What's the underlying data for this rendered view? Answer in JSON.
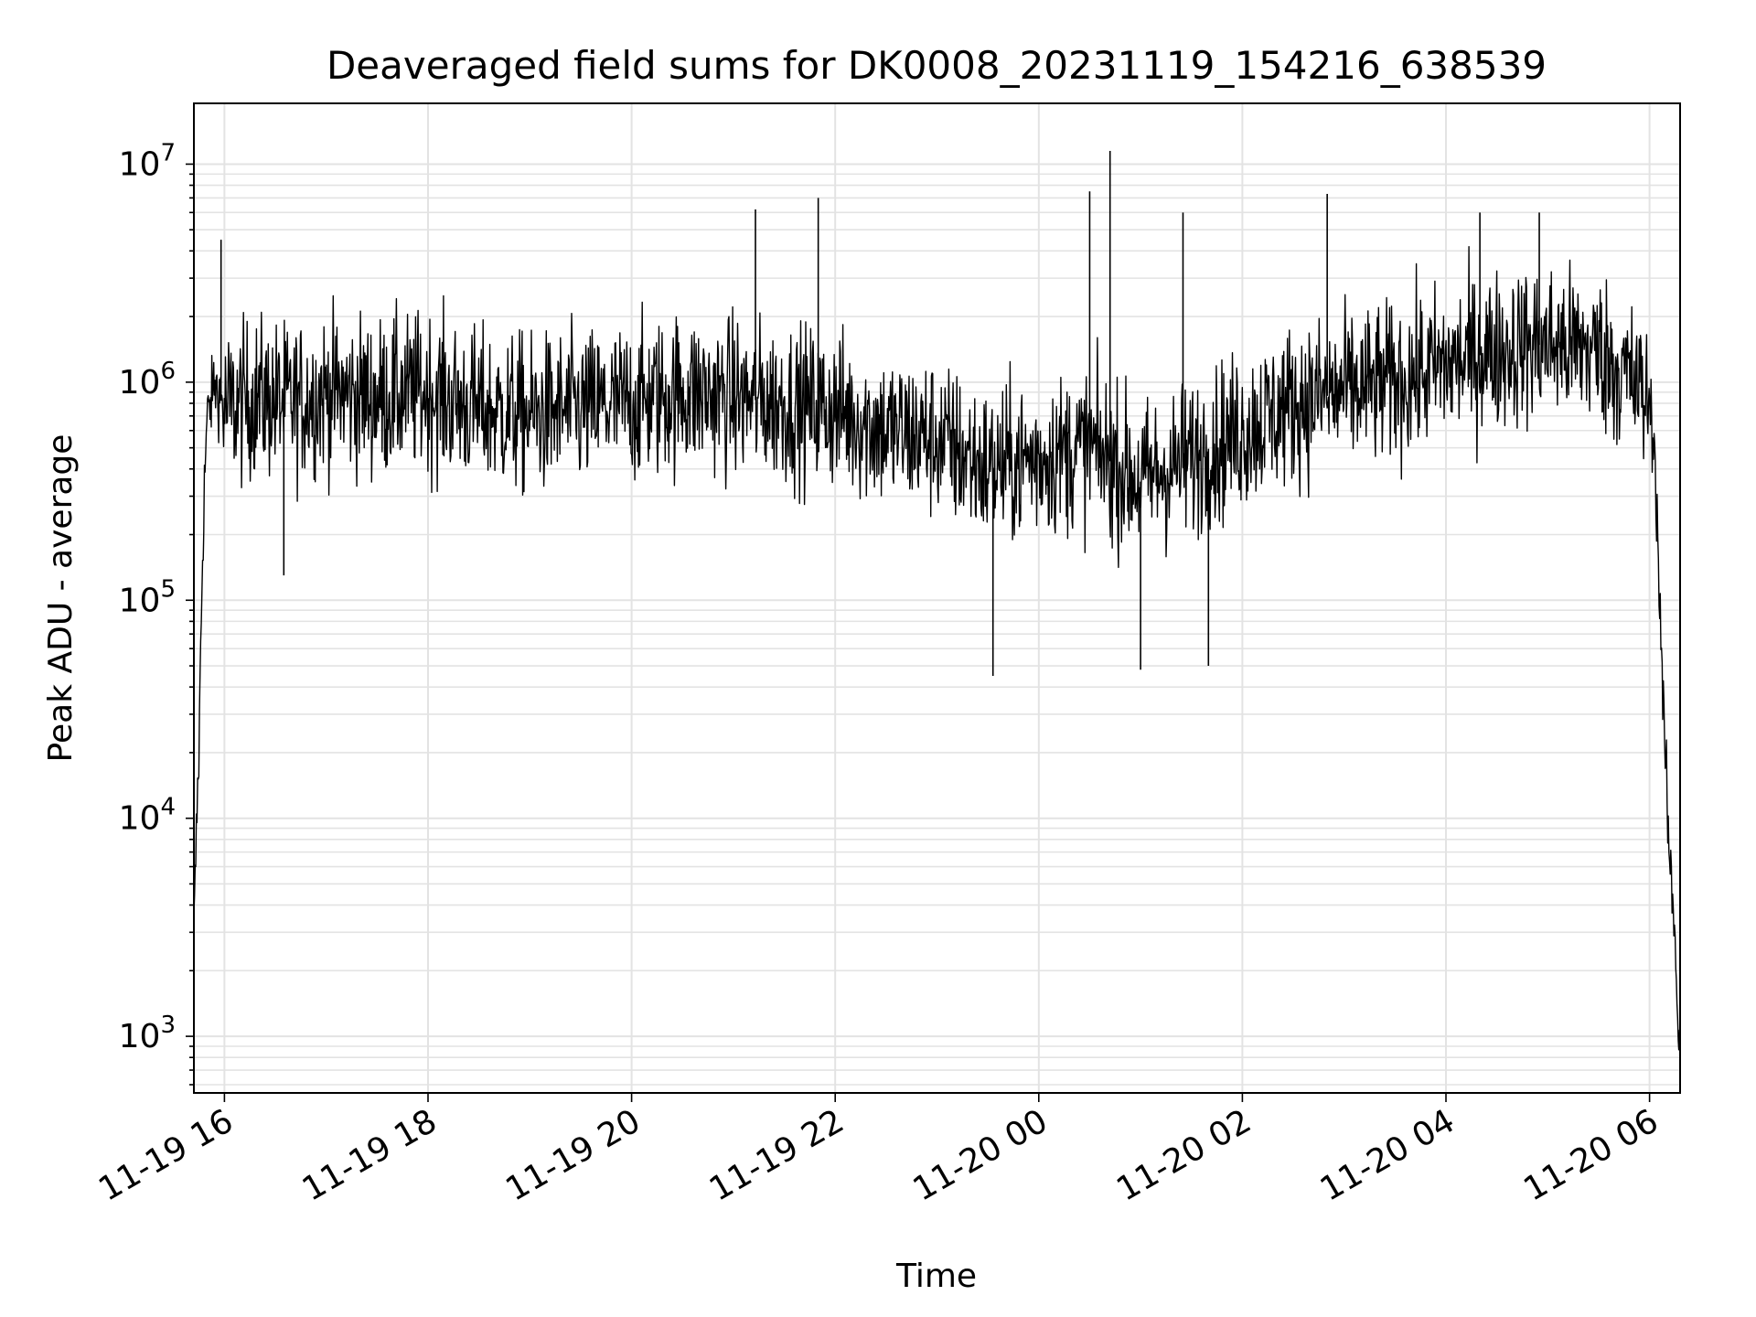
{
  "chart_data": {
    "type": "line",
    "title": "Deaveraged field sums for DK0008_20231119_154216_638539",
    "xlabel": "Time",
    "ylabel": "Peak ADU - average",
    "y_scale": "log",
    "ylim": [
      550,
      19000000
    ],
    "xlim": [
      "2023-11-19 15:42",
      "2023-11-20 06:18"
    ],
    "grid": true,
    "x_ticks": [
      {
        "label": "11-19 16",
        "time": "2023-11-19 16:00"
      },
      {
        "label": "11-19 18",
        "time": "2023-11-19 18:00"
      },
      {
        "label": "11-19 20",
        "time": "2023-11-19 20:00"
      },
      {
        "label": "11-19 22",
        "time": "2023-11-19 22:00"
      },
      {
        "label": "11-20 00",
        "time": "2023-11-20 00:00"
      },
      {
        "label": "11-20 02",
        "time": "2023-11-20 02:00"
      },
      {
        "label": "11-20 04",
        "time": "2023-11-20 04:00"
      },
      {
        "label": "11-20 06",
        "time": "2023-11-20 06:00"
      }
    ],
    "y_ticks": [
      {
        "mantissa": "10",
        "exponent": "3",
        "value": 1000
      },
      {
        "mantissa": "10",
        "exponent": "4",
        "value": 10000
      },
      {
        "mantissa": "10",
        "exponent": "5",
        "value": 100000
      },
      {
        "mantissa": "10",
        "exponent": "6",
        "value": 1000000
      },
      {
        "mantissa": "10",
        "exponent": "7",
        "value": 10000000
      }
    ],
    "series": [
      {
        "color": "#000000",
        "x": [
          "2023-11-19 15:42",
          "2023-11-19 15:43",
          "2023-11-19 15:44",
          "2023-11-19 15:45",
          "2023-11-19 15:46",
          "2023-11-19 15:47",
          "2023-11-19 15:48",
          "2023-11-19 15:49",
          "2023-11-19 15:50",
          "2023-11-19 15:52",
          "2023-11-19 15:54",
          "2023-11-19 15:56",
          "2023-11-19 16:00",
          "2023-11-19 16:10",
          "2023-11-19 16:20",
          "2023-11-19 16:40",
          "2023-11-19 17:00",
          "2023-11-19 17:30",
          "2023-11-19 18:00",
          "2023-11-19 18:30",
          "2023-11-19 19:00",
          "2023-11-19 19:30",
          "2023-11-19 20:00",
          "2023-11-19 20:30",
          "2023-11-19 21:00",
          "2023-11-19 21:30",
          "2023-11-19 22:00",
          "2023-11-19 22:30",
          "2023-11-19 23:00",
          "2023-11-19 23:30",
          "2023-11-20 00:00",
          "2023-11-20 00:30",
          "2023-11-20 01:00",
          "2023-11-20 01:30",
          "2023-11-20 02:00",
          "2023-11-20 02:30",
          "2023-11-20 03:00",
          "2023-11-20 03:30",
          "2023-11-20 04:00",
          "2023-11-20 04:30",
          "2023-11-20 05:00",
          "2023-11-20 05:30",
          "2023-11-20 05:50",
          "2023-11-20 06:00",
          "2023-11-20 06:03",
          "2023-11-20 06:06",
          "2023-11-20 06:09",
          "2023-11-20 06:12",
          "2023-11-20 06:15",
          "2023-11-20 06:17"
        ],
        "y": [
          3000,
          6000,
          12000,
          20000,
          60000,
          150000,
          300000,
          500000,
          700000,
          800000,
          1000000,
          900000,
          750000,
          800000,
          850000,
          800000,
          900000,
          850000,
          900000,
          750000,
          700000,
          750000,
          800000,
          900000,
          850000,
          800000,
          750000,
          600000,
          550000,
          400000,
          450000,
          500000,
          350000,
          450000,
          600000,
          800000,
          900000,
          1000000,
          1200000,
          1400000,
          1500000,
          1400000,
          1000000,
          800000,
          500000,
          100000,
          20000,
          6000,
          3000,
          1000
        ]
      }
    ],
    "peaks": [
      {
        "x": "2023-11-19 15:58",
        "y": 4500000
      },
      {
        "x": "2023-11-19 21:50",
        "y": 7000000
      },
      {
        "x": "2023-11-19 21:13",
        "y": 6200000
      },
      {
        "x": "2023-11-20 00:30",
        "y": 7500000
      },
      {
        "x": "2023-11-20 00:42",
        "y": 11500000
      },
      {
        "x": "2023-11-20 01:25",
        "y": 6000000
      },
      {
        "x": "2023-11-20 02:50",
        "y": 7300000
      },
      {
        "x": "2023-11-20 04:20",
        "y": 6000000
      },
      {
        "x": "2023-11-20 04:55",
        "y": 6000000
      }
    ],
    "dips": [
      {
        "x": "2023-11-19 16:35",
        "y": 130000
      },
      {
        "x": "2023-11-19 23:33",
        "y": 45000
      },
      {
        "x": "2023-11-20 01:00",
        "y": 48000
      },
      {
        "x": "2023-11-20 01:40",
        "y": 50000
      }
    ]
  }
}
